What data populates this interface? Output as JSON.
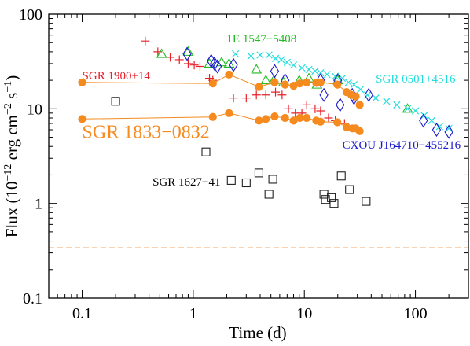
{
  "chart_data": {
    "type": "scatter",
    "xlabel": "Time (d)",
    "ylabel_parts": {
      "a": "Flux (10",
      "b": "−12",
      "c": " erg cm",
      "d": "−2",
      "e": " s",
      "f": "−1",
      "g": ")"
    },
    "x_scale": "log",
    "y_scale": "log",
    "xlim": [
      0.05,
      300
    ],
    "ylim": [
      0.1,
      100
    ],
    "x_ticks": [
      {
        "value": 0.1,
        "label": "0.1"
      },
      {
        "value": 1,
        "label": "1"
      },
      {
        "value": 10,
        "label": "10"
      },
      {
        "value": 100,
        "label": "100"
      }
    ],
    "y_ticks": [
      {
        "value": 0.1,
        "label": "0.1"
      },
      {
        "value": 1,
        "label": "1"
      },
      {
        "value": 10,
        "label": "10"
      },
      {
        "value": 100,
        "label": "100"
      }
    ],
    "grid": false,
    "reference_line": {
      "y": 0.34,
      "color": "#f4a460",
      "style": "dashed"
    },
    "series": [
      {
        "name": "SGR 1900+14",
        "marker": "plus",
        "color": "#e8202a",
        "points": [
          [
            0.37,
            52
          ],
          [
            0.48,
            40
          ],
          [
            0.62,
            35
          ],
          [
            0.75,
            33
          ],
          [
            0.9,
            30
          ],
          [
            1.02,
            29
          ],
          [
            1.15,
            28
          ],
          [
            1.4,
            21
          ],
          [
            1.5,
            20
          ],
          [
            2.3,
            13
          ],
          [
            3.0,
            13
          ],
          [
            3.7,
            14
          ],
          [
            4.5,
            14
          ],
          [
            5.5,
            15
          ],
          [
            6.3,
            14
          ],
          [
            7.2,
            10
          ],
          [
            8.3,
            9
          ],
          [
            9.5,
            9
          ],
          [
            10.5,
            11
          ],
          [
            12.5,
            10
          ],
          [
            14.0,
            9.5
          ],
          [
            16.5,
            8
          ],
          [
            19.0,
            7.5
          ],
          [
            23.0,
            7
          ]
        ]
      },
      {
        "name": "1E 1547−5408",
        "marker": "triangle",
        "color": "#22bb22",
        "points": [
          [
            0.52,
            38
          ],
          [
            0.9,
            40
          ],
          [
            1.4,
            30
          ],
          [
            1.8,
            31
          ],
          [
            2.1,
            30
          ],
          [
            3.7,
            26
          ],
          [
            4.5,
            20
          ],
          [
            5.3,
            20
          ],
          [
            6.5,
            19
          ],
          [
            9.0,
            20
          ],
          [
            11.0,
            21
          ],
          [
            13.0,
            18
          ],
          [
            20.0,
            20
          ],
          [
            85.0,
            10
          ]
        ]
      },
      {
        "name": "SGR 0501+4516",
        "marker": "cross",
        "color": "#22dddd",
        "points": [
          [
            2.4,
            38
          ],
          [
            3.3,
            36
          ],
          [
            4.0,
            37
          ],
          [
            4.8,
            37
          ],
          [
            5.5,
            34
          ],
          [
            6.2,
            33
          ],
          [
            7.0,
            31
          ],
          [
            8.0,
            29
          ],
          [
            9.5,
            27
          ],
          [
            11.0,
            26
          ],
          [
            12.5,
            25
          ],
          [
            14.0,
            24
          ],
          [
            16.0,
            23
          ],
          [
            19.0,
            22
          ],
          [
            22.0,
            21
          ],
          [
            25.0,
            19
          ],
          [
            28.0,
            18
          ],
          [
            32.0,
            16
          ],
          [
            37.0,
            14
          ],
          [
            44.0,
            13
          ],
          [
            55.0,
            12
          ],
          [
            68.0,
            11
          ],
          [
            85.0,
            10
          ],
          [
            100.0,
            9.5
          ],
          [
            120.0,
            8.5
          ],
          [
            140.0,
            7.5
          ],
          [
            165.0,
            6.5
          ],
          [
            200.0,
            6.2
          ]
        ]
      },
      {
        "name": "CXOU J164710−455216",
        "marker": "diamond",
        "color": "#1a1acd",
        "points": [
          [
            0.88,
            38
          ],
          [
            1.45,
            32
          ],
          [
            1.55,
            30
          ],
          [
            1.65,
            28
          ],
          [
            2.3,
            29
          ],
          [
            5.4,
            25
          ],
          [
            6.7,
            20
          ],
          [
            14.0,
            20
          ],
          [
            15.0,
            14
          ],
          [
            20.0,
            20
          ],
          [
            21.0,
            11
          ],
          [
            27.0,
            14
          ],
          [
            28.0,
            13
          ],
          [
            38.0,
            14
          ],
          [
            118.0,
            7.5
          ],
          [
            155.0,
            6
          ],
          [
            200.0,
            5.7
          ]
        ]
      },
      {
        "name": "SGR 1627−41",
        "marker": "square",
        "color": "#222222",
        "points": [
          [
            0.2,
            12
          ],
          [
            1.3,
            3.5
          ],
          [
            2.2,
            1.75
          ],
          [
            3.0,
            1.65
          ],
          [
            3.9,
            2.1
          ],
          [
            4.8,
            1.25
          ],
          [
            5.2,
            1.8
          ],
          [
            15.0,
            1.25
          ],
          [
            15.5,
            1.1
          ],
          [
            17.5,
            1.15
          ],
          [
            18.5,
            1.0
          ],
          [
            21.5,
            1.95
          ],
          [
            25.5,
            1.4
          ],
          [
            36.0,
            1.05
          ]
        ]
      },
      {
        "name": "SGR 1833−0832",
        "marker": "circle",
        "color": "#f58a1f",
        "connected": true,
        "tracks": [
          [
            [
              0.1,
              19
            ],
            [
              1.5,
              18.5
            ],
            [
              2.1,
              23
            ],
            [
              3.9,
              17
            ],
            [
              5.4,
              19
            ],
            [
              6.7,
              18
            ],
            [
              8.0,
              17.5
            ],
            [
              9.1,
              18.5
            ],
            [
              10.5,
              19
            ],
            [
              12.8,
              18.8
            ],
            [
              14.0,
              19
            ],
            [
              19.8,
              18
            ],
            [
              24.0,
              15
            ],
            [
              26.5,
              14
            ],
            [
              29.0,
              13.5
            ],
            [
              31.5,
              11
            ]
          ],
          [
            [
              0.1,
              7.8
            ],
            [
              1.5,
              8.2
            ],
            [
              2.1,
              9
            ],
            [
              3.9,
              7.5
            ],
            [
              4.5,
              7.8
            ],
            [
              5.4,
              8.3
            ],
            [
              6.7,
              8
            ],
            [
              8.0,
              7.5
            ],
            [
              9.1,
              8
            ],
            [
              10.5,
              8
            ],
            [
              12.8,
              7.5
            ],
            [
              14.0,
              7.3
            ],
            [
              19.8,
              7.2
            ],
            [
              24.0,
              6.4
            ],
            [
              27.0,
              6.2
            ],
            [
              29.0,
              6.2
            ],
            [
              31.5,
              5.8
            ]
          ]
        ]
      }
    ],
    "annotations": [
      {
        "text": "SGR 1900+14",
        "color": "#e8202a",
        "x": 0.1,
        "y": 20.5,
        "size": 15
      },
      {
        "text": "1E 1547−5408",
        "color": "#22bb22",
        "x": 2.0,
        "y": 50,
        "size": 15
      },
      {
        "text": "SGR 0501+4516",
        "color": "#22dddd",
        "x": 44,
        "y": 19,
        "size": 15
      },
      {
        "text": "SGR 1833−0832",
        "color": "#f58a1f",
        "x": 0.1,
        "y": 4.9,
        "size": 24
      },
      {
        "text": "CXOU J164710−455216",
        "color": "#1a1acd",
        "x": 22,
        "y": 3.8,
        "size": 15
      },
      {
        "text": "SGR 1627−41",
        "color": "#000000",
        "x": 0.43,
        "y": 1.55,
        "size": 15
      }
    ]
  }
}
